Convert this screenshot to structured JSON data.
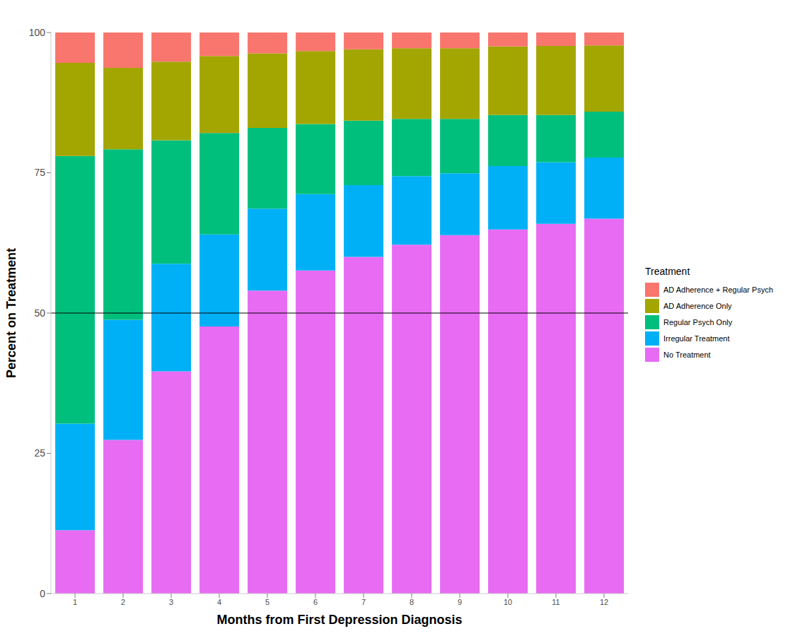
{
  "chart_data": {
    "type": "bar",
    "stacked": true,
    "x_label": "Months from First Depression Diagnosis",
    "y_label": "Percent on Treatment",
    "legend_title": "Treatment",
    "legend": "right",
    "grid": false,
    "categories": [
      "1",
      "2",
      "3",
      "4",
      "5",
      "6",
      "7",
      "8",
      "9",
      "10",
      "11",
      "12"
    ],
    "ylim": [
      0,
      100
    ],
    "yticks": [
      0,
      25,
      50,
      75,
      100
    ],
    "hline": 50,
    "series": [
      {
        "name": "AD Adherence + Regular Psych",
        "color": "#F8766D",
        "values": [
          5.4,
          6.3,
          5.2,
          4.2,
          3.7,
          3.3,
          3.0,
          2.8,
          2.8,
          2.5,
          2.4,
          2.3
        ]
      },
      {
        "name": "AD Adherence Only",
        "color": "#A3A500",
        "values": [
          16.6,
          14.5,
          14.0,
          13.7,
          13.3,
          13.0,
          12.7,
          12.6,
          12.6,
          12.2,
          12.3,
          11.8
        ]
      },
      {
        "name": "Regular Psych Only",
        "color": "#00BF7D",
        "values": [
          47.7,
          30.4,
          22.0,
          18.1,
          14.4,
          12.5,
          11.5,
          10.2,
          9.7,
          9.1,
          8.4,
          8.2
        ]
      },
      {
        "name": "Irregular Treatment",
        "color": "#00B0F6",
        "values": [
          19.0,
          21.4,
          19.2,
          16.4,
          14.6,
          13.6,
          12.8,
          12.2,
          11.0,
          11.3,
          11.0,
          10.9
        ]
      },
      {
        "name": "No Treatment",
        "color": "#E76BF3",
        "values": [
          11.3,
          27.4,
          39.6,
          47.6,
          54.0,
          57.6,
          60.0,
          62.2,
          63.9,
          64.9,
          65.9,
          66.8
        ]
      }
    ]
  }
}
